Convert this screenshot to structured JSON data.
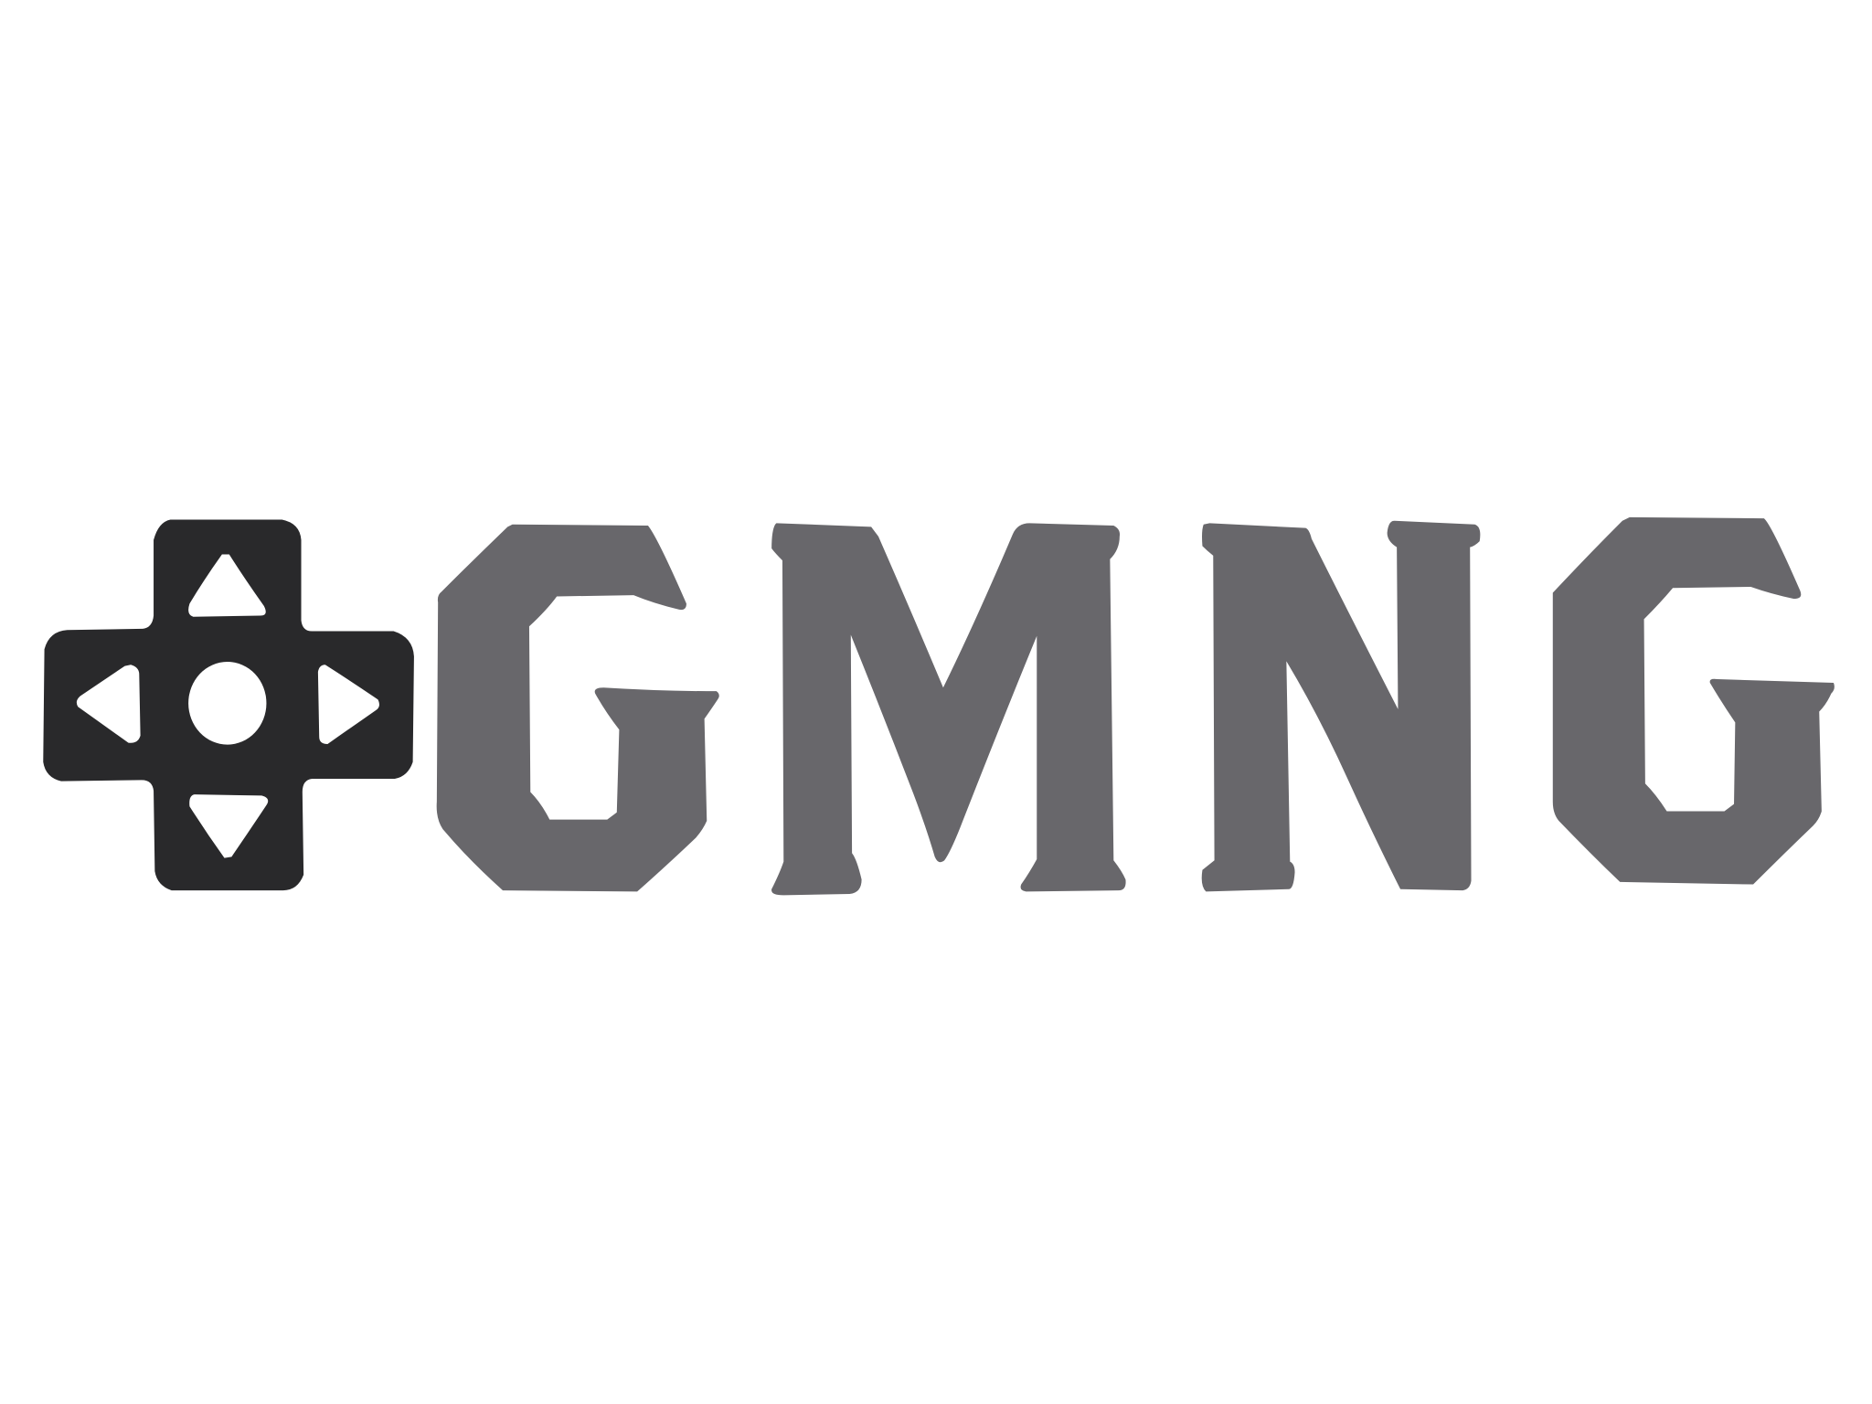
{
  "logo": {
    "wordmark": "GMNG",
    "letters": [
      "G",
      "M",
      "N",
      "G"
    ],
    "icon": "dpad-controller-icon",
    "colors": {
      "background": "#ffffff",
      "icon": "#29292b",
      "icon_cutout": "#ffffff",
      "wordmark": "#68676b"
    }
  }
}
